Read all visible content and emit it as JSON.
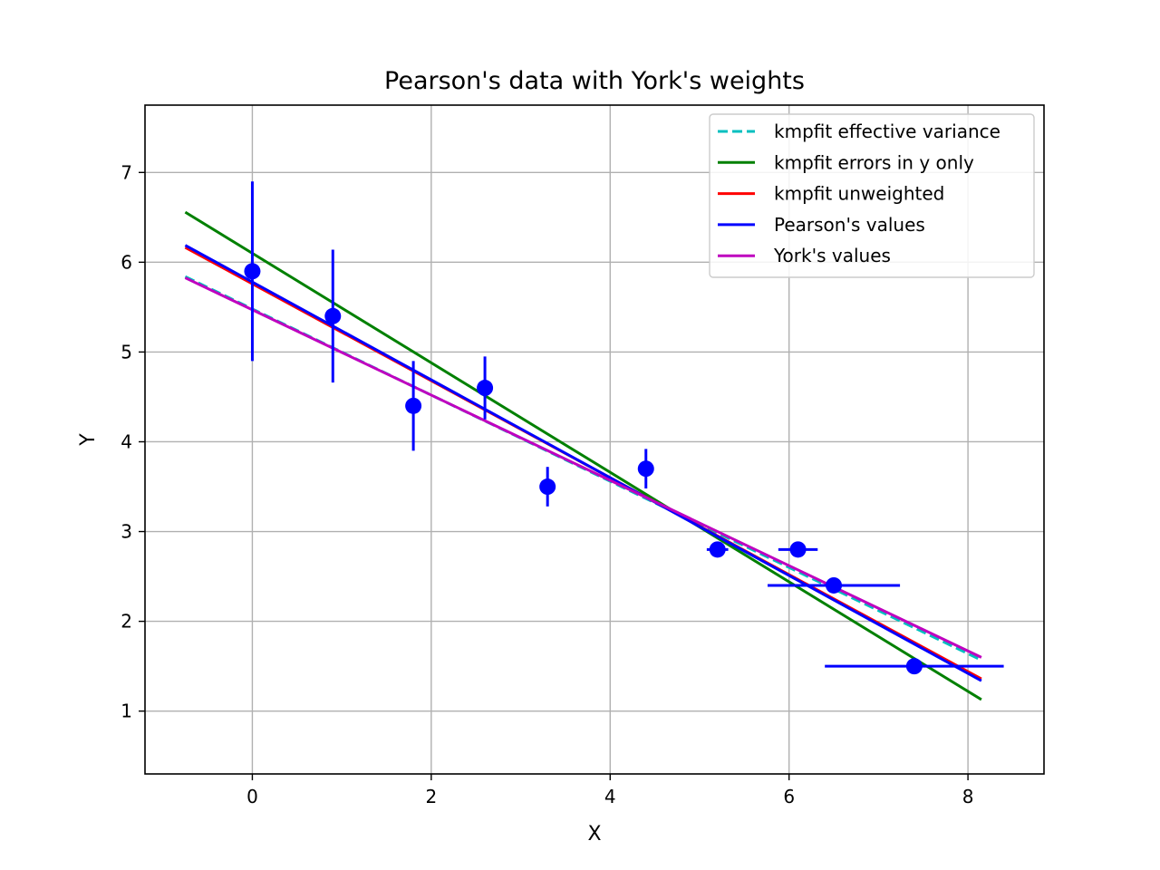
{
  "chart_data": {
    "type": "scatter",
    "title": "Pearson's data with York's weights",
    "xlabel": "X",
    "ylabel": "Y",
    "xlim": [
      -1.2,
      8.85
    ],
    "ylim": [
      0.3,
      7.75
    ],
    "xticks": [
      0,
      2,
      4,
      6,
      8
    ],
    "yticks": [
      1,
      2,
      3,
      4,
      5,
      6,
      7
    ],
    "grid": true,
    "legend_position": "top-right",
    "points": {
      "x": [
        0.0,
        0.9,
        1.8,
        2.6,
        3.3,
        4.4,
        5.2,
        6.1,
        6.5,
        7.4
      ],
      "y": [
        5.9,
        5.4,
        4.4,
        4.6,
        3.5,
        3.7,
        2.8,
        2.8,
        2.4,
        1.5
      ],
      "xerr": [
        0.0,
        0.0,
        0.0,
        0.0,
        0.0,
        0.08,
        0.12,
        0.22,
        0.74,
        1.0
      ],
      "yerr": [
        1.0,
        0.74,
        0.5,
        0.35,
        0.22,
        0.22,
        0.08,
        0.08,
        0.0,
        0.0
      ],
      "color": "#0000ff"
    },
    "fit_x_range": [
      -0.75,
      8.15
    ],
    "series": [
      {
        "name": "kmpfit effective variance",
        "intercept": 5.48,
        "slope": -0.48,
        "color": "#00bfbf",
        "dash": true
      },
      {
        "name": "kmpfit errors in y only",
        "intercept": 6.1,
        "slope": -0.61,
        "color": "#008000",
        "dash": false
      },
      {
        "name": "kmpfit unweighted",
        "intercept": 5.76,
        "slope": -0.54,
        "color": "#ff0000",
        "dash": false
      },
      {
        "name": "Pearson's values",
        "intercept": 5.78,
        "slope": -0.545,
        "color": "#0000ff",
        "dash": false
      },
      {
        "name": "York's values",
        "intercept": 5.47,
        "slope": -0.475,
        "color": "#bf00bf",
        "dash": false
      }
    ]
  }
}
